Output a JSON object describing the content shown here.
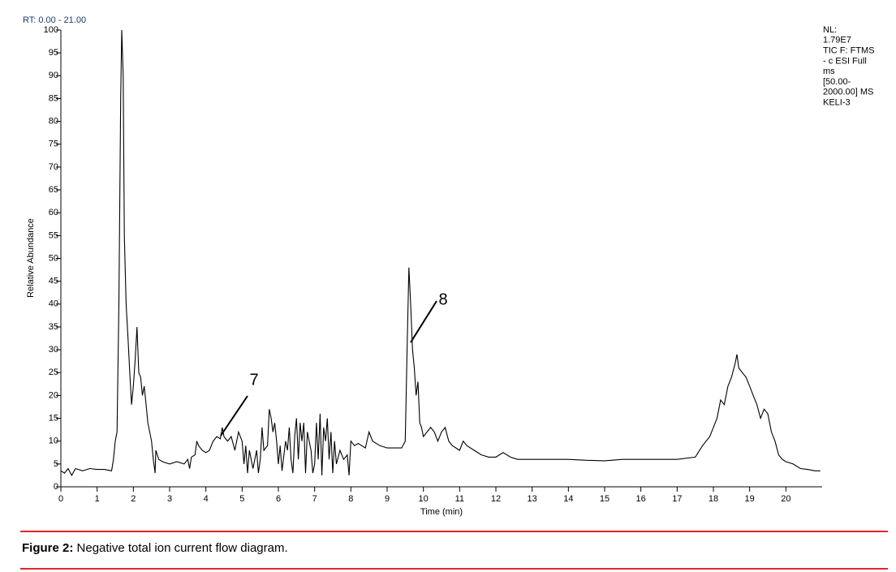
{
  "chart_data": {
    "type": "line",
    "range_label": "RT: 0.00 - 21.00",
    "info": [
      "NL:",
      "1.79E7",
      "TIC F: FTMS",
      "- c ESI Full",
      "ms",
      "[50.00-",
      "2000.00]  MS",
      "KELI-3"
    ],
    "xlabel": "Time (min)",
    "ylabel": "Relative Abundance",
    "xlim": [
      0,
      21
    ],
    "ylim": [
      0,
      100
    ],
    "xticks": [
      0,
      1,
      2,
      3,
      4,
      5,
      6,
      7,
      8,
      9,
      10,
      11,
      12,
      13,
      14,
      15,
      16,
      17,
      18,
      19,
      20
    ],
    "yticks": [
      0,
      5,
      10,
      15,
      20,
      25,
      30,
      35,
      40,
      45,
      50,
      55,
      60,
      65,
      70,
      75,
      80,
      85,
      90,
      95,
      100
    ],
    "annotations": [
      "7",
      "8"
    ],
    "x": [
      0,
      0.1,
      0.2,
      0.3,
      0.4,
      0.6,
      0.8,
      1.0,
      1.2,
      1.4,
      1.45,
      1.5,
      1.55,
      1.6,
      1.65,
      1.68,
      1.72,
      1.75,
      1.8,
      1.85,
      1.9,
      1.95,
      2.0,
      2.05,
      2.1,
      2.15,
      2.2,
      2.25,
      2.3,
      2.35,
      2.4,
      2.5,
      2.55,
      2.6,
      2.62,
      2.7,
      2.8,
      3.0,
      3.2,
      3.4,
      3.5,
      3.55,
      3.6,
      3.7,
      3.75,
      3.8,
      3.9,
      4.0,
      4.1,
      4.2,
      4.3,
      4.4,
      4.45,
      4.5,
      4.6,
      4.7,
      4.8,
      4.9,
      5.0,
      5.05,
      5.1,
      5.15,
      5.2,
      5.3,
      5.4,
      5.45,
      5.5,
      5.55,
      5.6,
      5.7,
      5.75,
      5.8,
      5.85,
      5.9,
      5.95,
      6.0,
      6.05,
      6.1,
      6.2,
      6.25,
      6.3,
      6.35,
      6.4,
      6.45,
      6.5,
      6.55,
      6.6,
      6.65,
      6.7,
      6.75,
      6.8,
      6.9,
      6.95,
      7.0,
      7.05,
      7.1,
      7.15,
      7.2,
      7.25,
      7.3,
      7.35,
      7.4,
      7.45,
      7.5,
      7.55,
      7.6,
      7.7,
      7.8,
      7.9,
      7.95,
      8.0,
      8.1,
      8.2,
      8.4,
      8.5,
      8.6,
      8.8,
      9.0,
      9.2,
      9.4,
      9.5,
      9.55,
      9.6,
      9.65,
      9.7,
      9.75,
      9.8,
      9.85,
      9.9,
      9.95,
      10.0,
      10.2,
      10.3,
      10.4,
      10.5,
      10.6,
      10.7,
      10.8,
      11.0,
      11.1,
      11.2,
      11.4,
      11.6,
      11.8,
      12.0,
      12.2,
      12.4,
      12.6,
      13.0,
      13.5,
      14,
      14.5,
      15,
      15.5,
      16,
      16.5,
      17,
      17.5,
      17.7,
      17.9,
      18.0,
      18.1,
      18.2,
      18.3,
      18.4,
      18.5,
      18.6,
      18.65,
      18.7,
      18.8,
      18.9,
      19.0,
      19.1,
      19.2,
      19.3,
      19.4,
      19.5,
      19.6,
      19.7,
      19.8,
      19.9,
      20.0,
      20.2,
      20.4,
      20.6,
      20.8,
      20.95
    ],
    "series": [
      {
        "name": "TIC",
        "color": "#000000",
        "values": [
          3.5,
          3,
          4,
          2.5,
          4,
          3.5,
          4,
          3.8,
          3.8,
          3.5,
          6,
          10,
          12,
          40,
          85,
          100,
          90,
          55,
          40,
          33,
          25,
          18,
          22,
          28,
          35,
          25,
          24,
          20,
          22,
          18,
          14,
          10,
          6,
          3,
          8,
          6,
          5.5,
          5,
          5.5,
          5,
          6,
          4,
          6.5,
          7,
          10,
          9,
          8,
          7.5,
          8,
          10,
          11,
          10.5,
          13,
          11,
          10,
          11,
          8,
          12,
          10,
          5,
          9,
          3,
          8,
          4,
          8,
          3,
          6,
          13,
          8,
          9,
          17,
          15,
          12,
          14,
          10,
          5,
          9,
          3.5,
          10,
          8,
          13,
          6,
          3,
          11,
          15,
          6,
          14,
          10,
          14,
          3,
          12,
          8,
          3,
          5,
          14,
          6,
          16,
          2.5,
          13,
          10,
          15,
          6,
          12,
          3,
          10,
          5,
          8,
          6,
          7,
          2.5,
          10,
          9,
          9.5,
          8.5,
          12,
          10,
          9,
          8.5,
          8.5,
          8.5,
          10,
          30,
          48,
          40,
          30,
          26,
          20,
          23,
          14,
          13,
          11,
          13,
          12,
          10,
          12,
          13,
          10,
          9,
          8,
          10,
          9,
          8,
          7,
          6.5,
          6.5,
          7.5,
          6.5,
          6,
          6,
          6,
          6,
          5.8,
          5.7,
          6,
          6,
          6,
          6,
          6.5,
          9,
          11,
          13,
          15,
          19,
          18,
          22,
          24,
          27,
          29,
          26,
          25,
          24,
          22,
          20,
          18,
          15,
          17,
          16,
          12,
          10,
          7,
          6,
          5.5,
          5,
          4,
          3.8,
          3.5,
          3.5
        ]
      }
    ]
  },
  "figure_caption": {
    "label": "Figure 2:",
    "text": "Negative total ion current flow diagram."
  }
}
